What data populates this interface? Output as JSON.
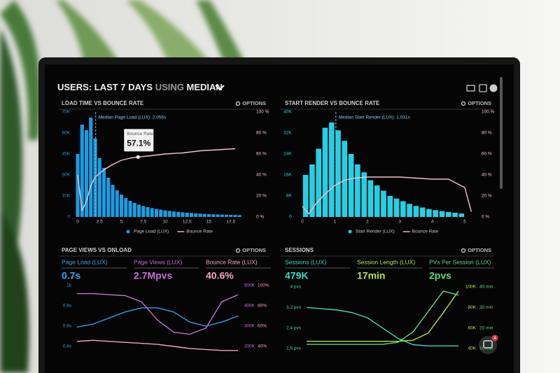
{
  "header": {
    "users": "USERS:",
    "period": "LAST 7 DAYS",
    "using": "USING",
    "stat": "MEDIAN"
  },
  "panels": [
    {
      "title": "LOAD TIME VS BOUNCE RATE",
      "options": "OPTIONS",
      "chart": {
        "type": "combo",
        "xlim": [
          -0.4,
          19.6
        ],
        "xticks": [
          0,
          2.5,
          5,
          7.5,
          10,
          12.5,
          15,
          17.5
        ],
        "ylim": [
          0,
          75000
        ],
        "yticks": [
          0,
          {
            "value": 15000,
            "label": "15K"
          },
          {
            "value": 30000,
            "label": "30K"
          },
          {
            "value": 45000,
            "label": "45K"
          },
          {
            "value": 60000,
            "label": "60K"
          },
          {
            "value": 75000,
            "label": "75K"
          }
        ],
        "y2lim": [
          0,
          100
        ],
        "y2ticks": [
          {
            "value": 0,
            "label": "0 %"
          },
          {
            "value": 20,
            "label": "20 %"
          },
          {
            "value": 40,
            "label": "40 %"
          },
          {
            "value": 60,
            "label": "60 %"
          },
          {
            "value": 80,
            "label": "80 %"
          },
          {
            "value": 100,
            "label": "100 %"
          }
        ],
        "median": {
          "value": 2.056,
          "label": "Median Page Load (LUX): 2.056s"
        },
        "tooltip": {
          "title": "Bounce Rate",
          "label": "57.1%",
          "value": 57.1,
          "x": 6.9,
          "axis": "y2"
        },
        "series": [
          {
            "name": "Page Load (LUX)",
            "type": "bar",
            "color": "#1d9be0",
            "x": [
              0,
              0.5,
              1,
              1.5,
              2,
              2.5,
              3,
              3.5,
              4,
              4.5,
              5,
              5.5,
              6,
              6.5,
              7,
              7.5,
              8,
              8.5,
              9,
              9.5,
              10,
              10.5,
              11,
              11.5,
              12,
              12.5,
              13,
              13.5,
              14,
              14.5,
              15,
              15.5,
              16,
              16.5,
              17,
              17.5,
              18,
              18.5
            ],
            "values": [
              45000,
              66000,
              62000,
              71000,
              56000,
              42000,
              35000,
              28000,
              23000,
              19000,
              16000,
              13500,
              11500,
              10000,
              8800,
              7800,
              7000,
              6300,
              5700,
              5200,
              4700,
              4300,
              3900,
              3600,
              3300,
              3000,
              2800,
              2600,
              2400,
              2200,
              2000,
              1900,
              1800,
              1700,
              1600,
              1500,
              1400,
              1300
            ]
          },
          {
            "name": "Bounce Rate",
            "type": "line",
            "color": "#f3c2cf",
            "axis": "y2",
            "x": [
              0,
              0.5,
              1,
              1.5,
              2,
              3,
              4,
              5,
              6,
              6.9,
              8,
              10,
              12,
              14,
              16,
              18
            ],
            "values": [
              40,
              6,
              15,
              30,
              38,
              45,
              50,
              54,
              56,
              57.1,
              58,
              60,
              61,
              63,
              64,
              65
            ]
          }
        ]
      }
    },
    {
      "title": "START RENDER VS BOUNCE RATE",
      "options": "OPTIONS",
      "chart": {
        "type": "combo",
        "xlim": [
          -0.2,
          5.3
        ],
        "xticks": [
          0,
          1,
          2,
          3,
          4,
          5
        ],
        "ylim": [
          0,
          40000
        ],
        "yticks": [
          0,
          {
            "value": 8000,
            "label": "8K"
          },
          {
            "value": 16000,
            "label": "16K"
          },
          {
            "value": 24000,
            "label": "24K"
          },
          {
            "value": 32000,
            "label": "32K"
          },
          {
            "value": 40000,
            "label": "40K"
          }
        ],
        "y2lim": [
          0,
          100
        ],
        "y2ticks": [
          {
            "value": 0,
            "label": "0 %"
          },
          {
            "value": 20,
            "label": "20 %"
          },
          {
            "value": 40,
            "label": "40 %"
          },
          {
            "value": 60,
            "label": "60 %"
          },
          {
            "value": 80,
            "label": "80 %"
          },
          {
            "value": 100,
            "label": "100 %"
          }
        ],
        "median": {
          "value": 1.031,
          "label": "Median Start Render (LUX): 1.031s"
        },
        "series": [
          {
            "name": "Start Render (LUX)",
            "type": "bar",
            "color": "#27cfe3",
            "x": [
              0.1,
              0.3,
              0.5,
              0.7,
              0.9,
              1.1,
              1.3,
              1.5,
              1.7,
              1.9,
              2.1,
              2.3,
              2.5,
              2.7,
              2.9,
              3.1,
              3.3,
              3.5,
              3.7,
              3.9,
              4.1,
              4.3,
              4.5,
              4.7,
              4.9
            ],
            "values": [
              16000,
              20000,
              26000,
              34000,
              36000,
              33000,
              29000,
              24000,
              20000,
              17000,
              14000,
              12000,
              10000,
              8000,
              7000,
              6000,
              5000,
              4200,
              3600,
              3000,
              2600,
              2200,
              1900,
              1600,
              1300
            ]
          },
          {
            "name": "Bounce Rate",
            "type": "line",
            "color": "#f3c2cf",
            "axis": "y2",
            "x": [
              0,
              0.2,
              0.4,
              0.7,
              1,
              1.3,
              1.6,
              2,
              2.5,
              3,
              3.5,
              4,
              4.5,
              5,
              5.2
            ],
            "values": [
              10,
              3,
              12,
              22,
              30,
              35,
              37,
              38,
              38,
              38,
              37,
              36,
              36,
              28,
              5
            ]
          }
        ]
      }
    },
    {
      "title": "PAGE VIEWS VS ONLOAD",
      "options": "OPTIONS",
      "kpis": [
        {
          "label": "Page Load (LUX)",
          "value": "0.7s",
          "color": "#3da2f0"
        },
        {
          "label": "Page Views (LUX)",
          "value": "2.7Mpvs",
          "color": "#c46fd6"
        },
        {
          "label": "Bounce Rate (LUX)",
          "value": "40.6%",
          "color": "#f5a3c3"
        }
      ],
      "chart": {
        "type": "line",
        "xlim": [
          0,
          10
        ],
        "ylim": [
          0.4,
          1
        ],
        "yticks": [
          {
            "value": 1,
            "label": "1k"
          },
          {
            "value": 0.8,
            "label": "0.8s"
          },
          {
            "value": 0.6,
            "label": "0.6s"
          },
          {
            "value": 0.4,
            "label": "0.4s"
          }
        ],
        "y2lim": [
          200000,
          500000
        ],
        "y2ticks": [
          {
            "value": 500000,
            "label": "500K"
          },
          {
            "value": 400000,
            "label": "400K"
          },
          {
            "value": 300000,
            "label": "300K"
          },
          {
            "value": 200000,
            "label": "200K"
          }
        ],
        "y3lim": [
          40,
          100
        ],
        "y3ticks": [
          {
            "value": 100,
            "label": "100%"
          },
          {
            "value": 80,
            "label": "80%"
          },
          {
            "value": 60,
            "label": "60%"
          },
          {
            "value": 40,
            "label": "40%"
          }
        ],
        "series": [
          {
            "type": "line",
            "color": "#3b9be6",
            "x": [
              0,
              1,
              2,
              3,
              4,
              5,
              6,
              7,
              8,
              9,
              10
            ],
            "values": [
              0.59,
              0.62,
              0.68,
              0.74,
              0.78,
              0.78,
              0.74,
              0.64,
              0.6,
              0.64,
              0.7
            ]
          },
          {
            "type": "line",
            "color": "#c46fd6",
            "axis": "y2",
            "x": [
              0,
              1,
              2,
              3,
              4,
              5,
              6,
              7,
              8,
              9,
              10
            ],
            "values": [
              460000,
              460000,
              455000,
              450000,
              420000,
              330000,
              270000,
              260000,
              290000,
              420000,
              455000
            ]
          },
          {
            "type": "line",
            "color": "#f5a3c3",
            "axis": "y3",
            "x": [
              0,
              1,
              2,
              3,
              4,
              5,
              6,
              7,
              8,
              9,
              10
            ],
            "values": [
              45,
              46,
              45,
              44,
              43,
              42,
              40,
              38,
              37,
              36,
              36
            ]
          }
        ]
      }
    },
    {
      "title": "SESSIONS",
      "options": "OPTIONS",
      "kpis": [
        {
          "label": "Sessions (LUX)",
          "value": "479K",
          "color": "#3fd6c6"
        },
        {
          "label": "Session Length (LUX)",
          "value": "17min",
          "color": "#b7e34e"
        },
        {
          "label": "PVs Per Session (LUX)",
          "value": "2pvs",
          "color": "#5fd68a"
        }
      ],
      "chart": {
        "type": "line",
        "xlim": [
          0,
          10
        ],
        "ylim": [
          1.6,
          4
        ],
        "yticks": [
          {
            "value": 4,
            "label": "4 pvs"
          },
          {
            "value": 3.2,
            "label": "3.2 pvs"
          },
          {
            "value": 2.4,
            "label": "2.4 pvs"
          },
          {
            "value": 1.6,
            "label": "1.6 pvs"
          }
        ],
        "y2lim": [
          40000,
          100000
        ],
        "y2ticks": [
          {
            "value": 100000,
            "label": "100K"
          },
          {
            "value": 80000,
            "label": "80K"
          },
          {
            "value": 60000,
            "label": "60K"
          },
          {
            "value": 40000,
            "label": "40K"
          }
        ],
        "y3lim": [
          10,
          40
        ],
        "y3ticks": [
          {
            "value": 40,
            "label": "40 min"
          },
          {
            "value": 30,
            "label": "30 min"
          },
          {
            "value": 20,
            "label": "20 min"
          },
          {
            "value": 10,
            "label": "10 min"
          }
        ],
        "series": [
          {
            "type": "line",
            "color": "#3fd6b6",
            "x": [
              0,
              1,
              2,
              3,
              4,
              5,
              6,
              7,
              8,
              9,
              10
            ],
            "values": [
              3.2,
              3.15,
              3.1,
              3.0,
              2.8,
              2.4,
              2.0,
              1.75,
              1.7,
              1.7,
              1.7
            ]
          },
          {
            "type": "line",
            "color": "#b7e34e",
            "axis": "y2",
            "x": [
              0,
              1,
              2,
              3,
              4,
              5,
              6,
              7,
              8,
              9,
              10
            ],
            "values": [
              47000,
              47000,
              47000,
              47000,
              47000,
              47000,
              47000,
              48000,
              55000,
              75000,
              96000
            ]
          },
          {
            "type": "line",
            "color": "#5fd68a",
            "axis": "y3",
            "x": [
              0,
              1,
              2,
              3,
              4,
              5,
              6,
              7,
              8,
              9,
              10
            ],
            "values": [
              12,
              12,
              12,
              12,
              12,
              12,
              13,
              18,
              28,
              38,
              36
            ]
          }
        ]
      }
    }
  ],
  "chat": {
    "badge": 4
  }
}
